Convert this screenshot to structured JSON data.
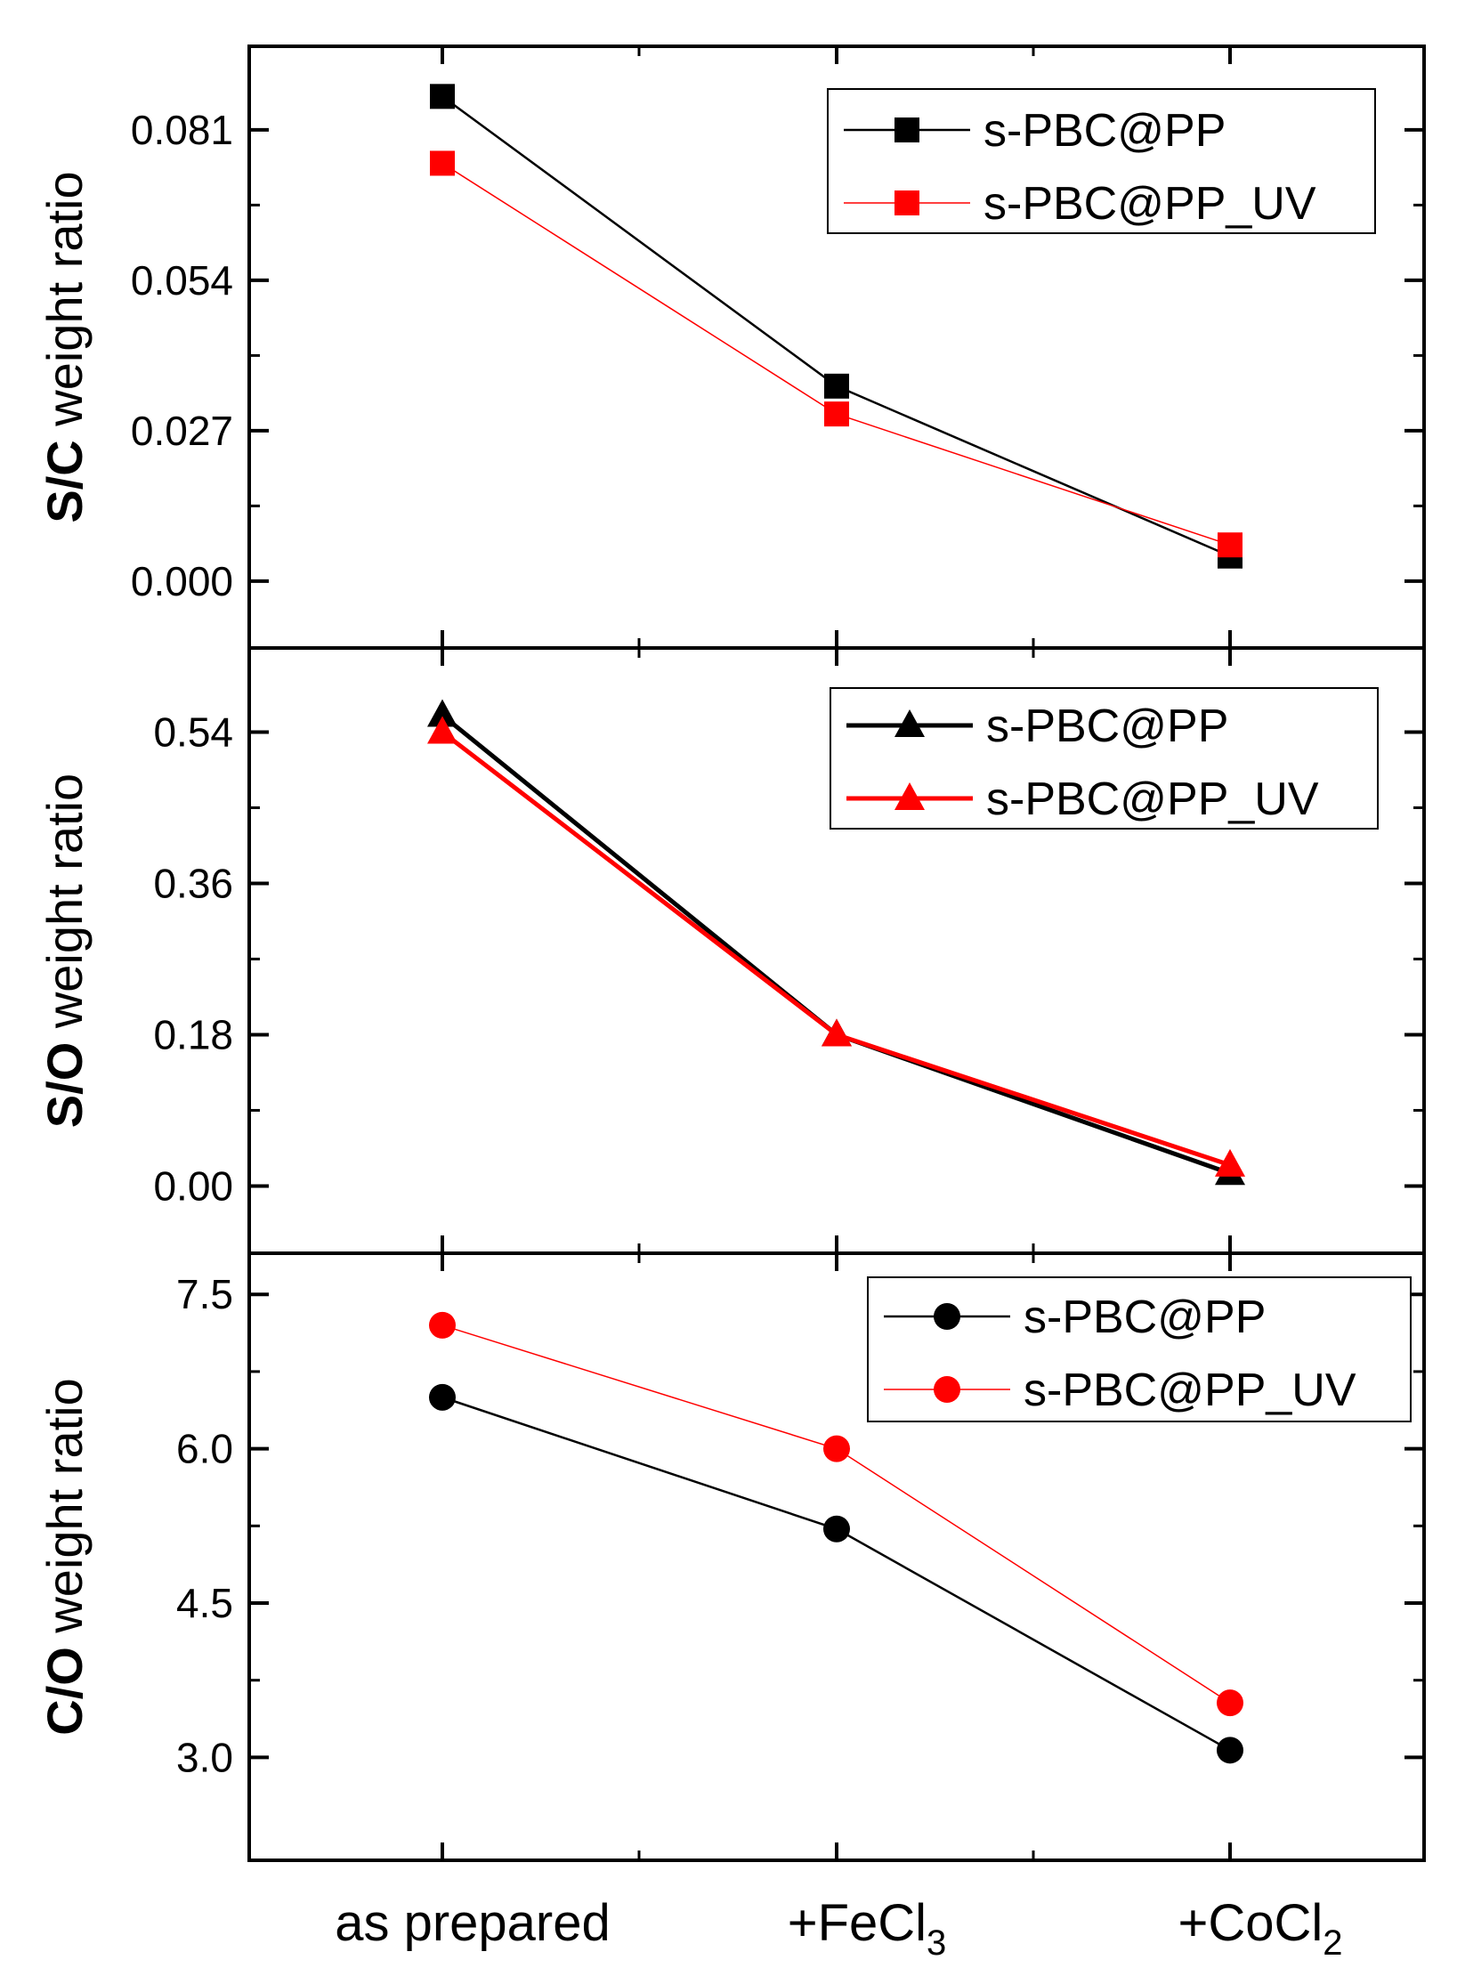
{
  "chart_data": [
    {
      "type": "line",
      "marker": "square",
      "ylabel": {
        "bold": "S/C",
        "normal": " weight ratio"
      },
      "yticks": [
        "0.000",
        "0.027",
        "0.054",
        "0.081"
      ],
      "ylim": [
        -0.012,
        0.096
      ],
      "categories": [
        "as prepared",
        "+FeCl3",
        "+CoCl2"
      ],
      "legend_position": "top-right",
      "series": [
        {
          "name": "s-PBC@PP",
          "color": "#000000",
          "values": [
            0.087,
            0.035,
            0.0045
          ]
        },
        {
          "name": "s-PBC@PP_UV",
          "color": "#ff0000",
          "values": [
            0.075,
            0.03,
            0.0065
          ]
        }
      ]
    },
    {
      "type": "line",
      "marker": "triangle",
      "ylabel": {
        "bold": "S/O",
        "normal": " weight ratio"
      },
      "yticks": [
        "0.00",
        "0.18",
        "0.36",
        "0.54"
      ],
      "ylim": [
        -0.08,
        0.64
      ],
      "categories": [
        "as prepared",
        "+FeCl3",
        "+CoCl2"
      ],
      "legend_position": "top-right",
      "series": [
        {
          "name": "s-PBC@PP",
          "color": "#000000",
          "values": [
            0.56,
            0.18,
            0.015
          ]
        },
        {
          "name": "s-PBC@PP_UV",
          "color": "#ff0000",
          "values": [
            0.54,
            0.18,
            0.025
          ]
        }
      ]
    },
    {
      "type": "line",
      "marker": "circle",
      "ylabel": {
        "bold": "C/O",
        "normal": " weight ratio"
      },
      "yticks": [
        "3.0",
        "4.5",
        "6.0",
        "7.5"
      ],
      "ylim": [
        2.0,
        7.9
      ],
      "categories": [
        "as prepared",
        "+FeCl3",
        "+CoCl2"
      ],
      "legend_position": "top-right",
      "series": [
        {
          "name": "s-PBC@PP",
          "color": "#000000",
          "values": [
            6.5,
            5.22,
            3.07
          ]
        },
        {
          "name": "s-PBC@PP_UV",
          "color": "#ff0000",
          "values": [
            7.2,
            6.0,
            3.53
          ]
        }
      ]
    }
  ],
  "x_axis": {
    "labels": [
      {
        "base": "as prepared",
        "sub": ""
      },
      {
        "base": "+FeCl",
        "sub": "3"
      },
      {
        "base": "+CoCl",
        "sub": "2"
      }
    ]
  }
}
